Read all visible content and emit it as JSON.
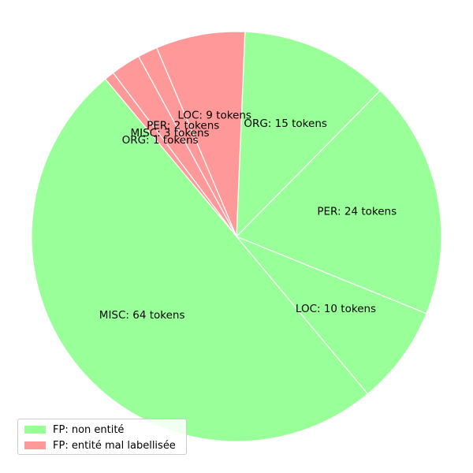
{
  "chart_data": {
    "type": "pie",
    "start_angle_deg": 127,
    "counterclockwise": true,
    "slices": [
      {
        "label": "ORG: 1 tokens",
        "value": 1,
        "group": "FP: entité mal labellisée"
      },
      {
        "label": "MISC: 64 tokens",
        "value": 64,
        "group": "FP: non entité"
      },
      {
        "label": "LOC: 10 tokens",
        "value": 10,
        "group": "FP: non entité"
      },
      {
        "label": "PER: 24 tokens",
        "value": 24,
        "group": "FP: non entité"
      },
      {
        "label": "ORG: 15 tokens",
        "value": 15,
        "group": "FP: non entité"
      },
      {
        "label": "LOC: 9 tokens",
        "value": 9,
        "group": "FP: entité mal labellisée"
      },
      {
        "label": "PER: 2 tokens",
        "value": 2,
        "group": "FP: entité mal labellisée"
      },
      {
        "label": "MISC: 3 tokens",
        "value": 3,
        "group": "FP: entité mal labellisée"
      }
    ],
    "legend": {
      "placement": "lower-left",
      "entries": [
        {
          "label": "FP: non entité",
          "color": "#99ff99"
        },
        {
          "label": "FP: entité mal labellisée",
          "color": "#ff9999"
        }
      ]
    },
    "colors": {
      "FP: non entité": "#99ff99",
      "FP: entité mal labellisée": "#ff9999",
      "edge": "#ffffff"
    }
  }
}
